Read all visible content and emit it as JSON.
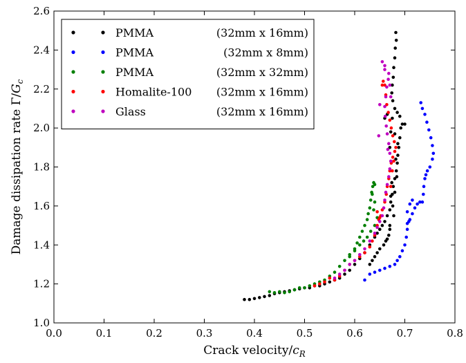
{
  "chart_data": {
    "type": "scatter",
    "xlabel": "Crack velocity/",
    "xlabel_sym": "c",
    "xlabel_sub": "R",
    "ylabel": "Damage dissipation rate Γ/",
    "ylabel_sym": "G",
    "ylabel_sub": "c",
    "xlim": [
      0.0,
      0.8
    ],
    "ylim": [
      1.0,
      2.6
    ],
    "xticks": [
      "0.0",
      "0.1",
      "0.2",
      "0.3",
      "0.4",
      "0.5",
      "0.6",
      "0.7",
      "0.8"
    ],
    "yticks": [
      "1.0",
      "1.2",
      "1.4",
      "1.6",
      "1.8",
      "2.0",
      "2.2",
      "2.4",
      "2.6"
    ],
    "legend_position": "top-left",
    "series": [
      {
        "name": "PMMA",
        "size": "(32mm x 16mm)",
        "color": "#000000",
        "points": [
          [
            0.38,
            1.12
          ],
          [
            0.39,
            1.12
          ],
          [
            0.4,
            1.125
          ],
          [
            0.41,
            1.13
          ],
          [
            0.42,
            1.135
          ],
          [
            0.43,
            1.14
          ],
          [
            0.44,
            1.15
          ],
          [
            0.45,
            1.155
          ],
          [
            0.46,
            1.16
          ],
          [
            0.47,
            1.165
          ],
          [
            0.48,
            1.17
          ],
          [
            0.49,
            1.175
          ],
          [
            0.5,
            1.18
          ],
          [
            0.51,
            1.18
          ],
          [
            0.52,
            1.19
          ],
          [
            0.53,
            1.19
          ],
          [
            0.54,
            1.2
          ],
          [
            0.55,
            1.21
          ],
          [
            0.56,
            1.22
          ],
          [
            0.57,
            1.23
          ],
          [
            0.58,
            1.25
          ],
          [
            0.59,
            1.27
          ],
          [
            0.6,
            1.3
          ],
          [
            0.61,
            1.33
          ],
          [
            0.62,
            1.36
          ],
          [
            0.63,
            1.4
          ],
          [
            0.64,
            1.44
          ],
          [
            0.645,
            1.46
          ],
          [
            0.65,
            1.48
          ],
          [
            0.655,
            1.5
          ],
          [
            0.66,
            1.52
          ],
          [
            0.665,
            1.55
          ],
          [
            0.67,
            1.58
          ],
          [
            0.672,
            1.62
          ],
          [
            0.675,
            1.66
          ],
          [
            0.677,
            1.7
          ],
          [
            0.68,
            1.74
          ],
          [
            0.683,
            1.78
          ],
          [
            0.685,
            1.82
          ],
          [
            0.686,
            1.86
          ],
          [
            0.688,
            1.9
          ],
          [
            0.69,
            1.95
          ],
          [
            0.692,
            2.0
          ],
          [
            0.695,
            2.02
          ],
          [
            0.7,
            2.02
          ],
          [
            0.69,
            2.06
          ],
          [
            0.685,
            2.08
          ],
          [
            0.68,
            2.1
          ],
          [
            0.676,
            2.14
          ],
          [
            0.674,
            2.18
          ],
          [
            0.675,
            2.22
          ],
          [
            0.677,
            2.26
          ],
          [
            0.678,
            2.31
          ],
          [
            0.68,
            2.36
          ],
          [
            0.681,
            2.41
          ],
          [
            0.683,
            2.45
          ],
          [
            0.682,
            2.49
          ],
          [
            0.67,
            1.5
          ],
          [
            0.668,
            1.45
          ],
          [
            0.662,
            1.42
          ],
          [
            0.658,
            1.4
          ],
          [
            0.65,
            1.38
          ],
          [
            0.645,
            1.36
          ],
          [
            0.64,
            1.34
          ],
          [
            0.635,
            1.32
          ],
          [
            0.63,
            1.3
          ],
          [
            0.678,
            1.55
          ],
          [
            0.676,
            1.6
          ],
          [
            0.672,
            1.65
          ],
          [
            0.674,
            1.72
          ],
          [
            0.68,
            1.67
          ],
          [
            0.684,
            1.75
          ],
          [
            0.682,
            1.84
          ],
          [
            0.686,
            1.92
          ],
          [
            0.68,
            1.97
          ],
          [
            0.675,
            2.05
          ],
          [
            0.672,
            1.98
          ],
          [
            0.67,
            1.9
          ],
          [
            0.665,
            2.07
          ],
          [
            0.66,
            2.05
          ],
          [
            0.67,
            1.48
          ],
          [
            0.665,
            1.43
          ]
        ]
      },
      {
        "name": "PMMA",
        "size": "(32mm x 8mm)",
        "color": "#0000ff",
        "points": [
          [
            0.62,
            1.22
          ],
          [
            0.63,
            1.25
          ],
          [
            0.64,
            1.26
          ],
          [
            0.65,
            1.27
          ],
          [
            0.66,
            1.28
          ],
          [
            0.67,
            1.29
          ],
          [
            0.68,
            1.3
          ],
          [
            0.685,
            1.32
          ],
          [
            0.69,
            1.34
          ],
          [
            0.695,
            1.37
          ],
          [
            0.7,
            1.4
          ],
          [
            0.703,
            1.44
          ],
          [
            0.705,
            1.48
          ],
          [
            0.705,
            1.51
          ],
          [
            0.708,
            1.52
          ],
          [
            0.71,
            1.53
          ],
          [
            0.715,
            1.56
          ],
          [
            0.72,
            1.59
          ],
          [
            0.725,
            1.61
          ],
          [
            0.73,
            1.62
          ],
          [
            0.735,
            1.62
          ],
          [
            0.737,
            1.66
          ],
          [
            0.738,
            1.7
          ],
          [
            0.74,
            1.74
          ],
          [
            0.742,
            1.76
          ],
          [
            0.745,
            1.78
          ],
          [
            0.75,
            1.8
          ],
          [
            0.755,
            1.84
          ],
          [
            0.757,
            1.87
          ],
          [
            0.755,
            1.91
          ],
          [
            0.752,
            1.95
          ],
          [
            0.748,
            1.99
          ],
          [
            0.744,
            2.03
          ],
          [
            0.74,
            2.07
          ],
          [
            0.735,
            2.1
          ],
          [
            0.732,
            2.13
          ],
          [
            0.705,
            1.57
          ],
          [
            0.71,
            1.61
          ],
          [
            0.715,
            1.63
          ]
        ]
      },
      {
        "name": "PMMA",
        "size": "(32mm x 32mm)",
        "color": "#007f00",
        "points": [
          [
            0.43,
            1.16
          ],
          [
            0.44,
            1.155
          ],
          [
            0.45,
            1.16
          ],
          [
            0.46,
            1.155
          ],
          [
            0.47,
            1.16
          ],
          [
            0.48,
            1.17
          ],
          [
            0.49,
            1.18
          ],
          [
            0.5,
            1.18
          ],
          [
            0.51,
            1.19
          ],
          [
            0.52,
            1.2
          ],
          [
            0.53,
            1.21
          ],
          [
            0.54,
            1.22
          ],
          [
            0.55,
            1.24
          ],
          [
            0.56,
            1.26
          ],
          [
            0.57,
            1.29
          ],
          [
            0.58,
            1.32
          ],
          [
            0.59,
            1.35
          ],
          [
            0.6,
            1.38
          ],
          [
            0.605,
            1.41
          ],
          [
            0.61,
            1.44
          ],
          [
            0.615,
            1.47
          ],
          [
            0.62,
            1.5
          ],
          [
            0.625,
            1.53
          ],
          [
            0.627,
            1.56
          ],
          [
            0.63,
            1.59
          ],
          [
            0.632,
            1.63
          ],
          [
            0.634,
            1.67
          ],
          [
            0.636,
            1.7
          ],
          [
            0.638,
            1.72
          ],
          [
            0.64,
            1.71
          ],
          [
            0.635,
            1.66
          ],
          [
            0.64,
            1.62
          ],
          [
            0.638,
            1.58
          ],
          [
            0.645,
            1.54
          ],
          [
            0.64,
            1.5
          ],
          [
            0.632,
            1.47
          ],
          [
            0.625,
            1.44
          ],
          [
            0.618,
            1.42
          ],
          [
            0.61,
            1.4
          ],
          [
            0.6,
            1.37
          ],
          [
            0.59,
            1.34
          ]
        ]
      },
      {
        "name": "Homalite-100",
        "size": "(32mm x 16mm)",
        "color": "#ff0000",
        "points": [
          [
            0.52,
            1.19
          ],
          [
            0.53,
            1.2
          ],
          [
            0.54,
            1.21
          ],
          [
            0.55,
            1.23
          ],
          [
            0.56,
            1.22
          ],
          [
            0.57,
            1.24
          ],
          [
            0.58,
            1.27
          ],
          [
            0.59,
            1.3
          ],
          [
            0.6,
            1.32
          ],
          [
            0.61,
            1.34
          ],
          [
            0.62,
            1.36
          ],
          [
            0.63,
            1.39
          ],
          [
            0.635,
            1.42
          ],
          [
            0.64,
            1.45
          ],
          [
            0.645,
            1.5
          ],
          [
            0.65,
            1.54
          ],
          [
            0.655,
            1.58
          ],
          [
            0.66,
            1.62
          ],
          [
            0.663,
            1.66
          ],
          [
            0.665,
            1.7
          ],
          [
            0.668,
            1.74
          ],
          [
            0.67,
            1.78
          ],
          [
            0.673,
            1.82
          ],
          [
            0.676,
            1.85
          ],
          [
            0.68,
            1.88
          ],
          [
            0.682,
            1.9
          ],
          [
            0.679,
            1.93
          ],
          [
            0.676,
            1.96
          ],
          [
            0.673,
            2.0
          ],
          [
            0.67,
            2.04
          ],
          [
            0.667,
            2.08
          ],
          [
            0.664,
            2.12
          ],
          [
            0.662,
            2.17
          ],
          [
            0.66,
            2.22
          ],
          [
            0.657,
            2.24
          ],
          [
            0.655,
            2.22
          ],
          [
            0.652,
            1.55
          ],
          [
            0.648,
            1.53
          ],
          [
            0.645,
            1.57
          ],
          [
            0.672,
            1.7
          ],
          [
            0.675,
            1.78
          ],
          [
            0.678,
            1.83
          ]
        ]
      },
      {
        "name": "Glass",
        "size": "(32mm x 16mm)",
        "color": "#bf00bf",
        "points": [
          [
            0.56,
            1.23
          ],
          [
            0.57,
            1.25
          ],
          [
            0.58,
            1.27
          ],
          [
            0.59,
            1.3
          ],
          [
            0.6,
            1.32
          ],
          [
            0.61,
            1.35
          ],
          [
            0.62,
            1.38
          ],
          [
            0.63,
            1.42
          ],
          [
            0.64,
            1.46
          ],
          [
            0.645,
            1.49
          ],
          [
            0.65,
            1.52
          ],
          [
            0.655,
            1.55
          ],
          [
            0.658,
            1.59
          ],
          [
            0.66,
            1.63
          ],
          [
            0.662,
            1.67
          ],
          [
            0.665,
            1.71
          ],
          [
            0.668,
            1.75
          ],
          [
            0.67,
            1.79
          ],
          [
            0.672,
            1.83
          ],
          [
            0.67,
            1.87
          ],
          [
            0.668,
            1.92
          ],
          [
            0.665,
            1.97
          ],
          [
            0.663,
            2.01
          ],
          [
            0.661,
            2.06
          ],
          [
            0.66,
            2.11
          ],
          [
            0.662,
            2.16
          ],
          [
            0.664,
            2.21
          ],
          [
            0.667,
            2.25
          ],
          [
            0.668,
            2.28
          ],
          [
            0.66,
            2.32
          ],
          [
            0.655,
            2.34
          ],
          [
            0.65,
            2.12
          ],
          [
            0.648,
            1.96
          ],
          [
            0.66,
            2.3
          ],
          [
            0.67,
            2.22
          ],
          [
            0.672,
            2.16
          ],
          [
            0.666,
            1.89
          ]
        ]
      }
    ]
  }
}
